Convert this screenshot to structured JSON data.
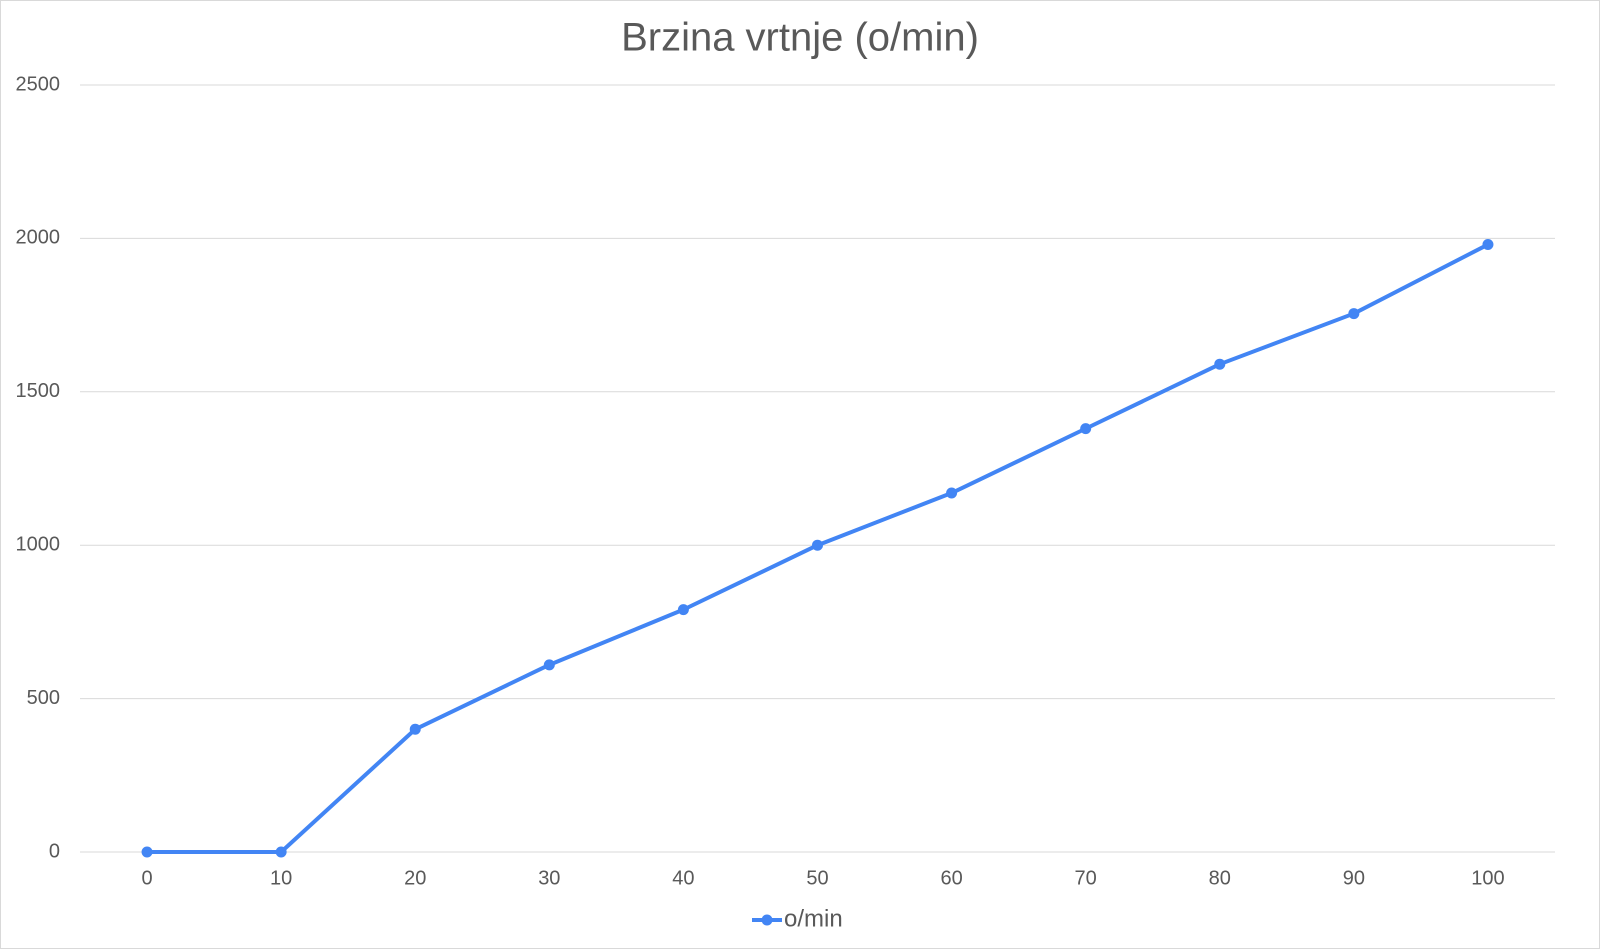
{
  "chart_data": {
    "type": "line",
    "title": "Brzina vrtnje (o/min)",
    "categories": [
      "0",
      "10",
      "20",
      "30",
      "40",
      "50",
      "60",
      "70",
      "80",
      "90",
      "100"
    ],
    "series": [
      {
        "name": "o/min",
        "color": "#4285f4",
        "values": [
          0,
          0,
          400,
          610,
          790,
          1000,
          1170,
          1380,
          1590,
          1755,
          1980
        ]
      }
    ],
    "ylim": [
      0,
      2500
    ],
    "yticks": [
      0,
      500,
      1000,
      1500,
      2000,
      2500
    ],
    "grid": true,
    "legend": "bottom"
  }
}
